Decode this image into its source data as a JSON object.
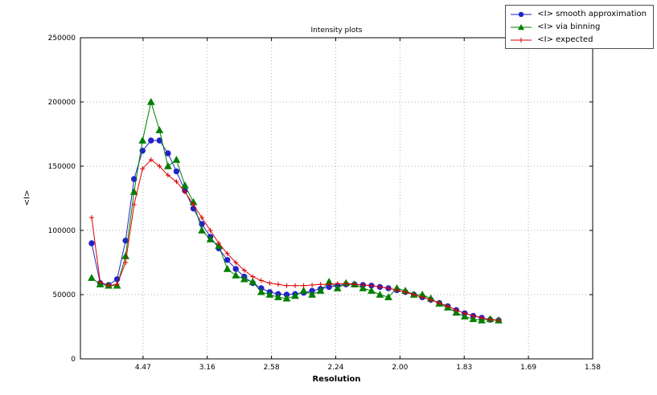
{
  "chart_data": {
    "type": "line",
    "title": "Intensity plots",
    "xlabel": "Resolution",
    "ylabel": "<I>",
    "grid": "dotted",
    "legend_position": "upper right, outside axes",
    "x_axis": {
      "note": "x variable is 1/d^2; tick labels show resolution d in Angstrom",
      "range": [
        0.00125,
        0.4
      ],
      "ticks": [
        {
          "label": "4.47",
          "value": 0.05
        },
        {
          "label": "3.16",
          "value": 0.1
        },
        {
          "label": "2.58",
          "value": 0.15
        },
        {
          "label": "2.24",
          "value": 0.2
        },
        {
          "label": "2.00",
          "value": 0.25
        },
        {
          "label": "1.83",
          "value": 0.3
        },
        {
          "label": "1.69",
          "value": 0.35
        },
        {
          "label": "1.58",
          "value": 0.4
        }
      ]
    },
    "y_axis": {
      "range": [
        0,
        250000
      ],
      "ticks": [
        {
          "label": "0",
          "value": 0
        },
        {
          "label": "50000",
          "value": 50000
        },
        {
          "label": "100000",
          "value": 100000
        },
        {
          "label": "150000",
          "value": 150000
        },
        {
          "label": "200000",
          "value": 200000
        },
        {
          "label": "250000",
          "value": 250000
        }
      ]
    },
    "x": [
      0.01,
      0.0166,
      0.0232,
      0.0298,
      0.0364,
      0.043,
      0.0496,
      0.0562,
      0.0628,
      0.0694,
      0.076,
      0.0826,
      0.0892,
      0.0958,
      0.1024,
      0.109,
      0.1156,
      0.1222,
      0.1288,
      0.1354,
      0.142,
      0.1486,
      0.1552,
      0.1618,
      0.1684,
      0.175,
      0.1816,
      0.1882,
      0.1948,
      0.2014,
      0.208,
      0.2146,
      0.2212,
      0.2278,
      0.2344,
      0.241,
      0.2476,
      0.2542,
      0.2608,
      0.2674,
      0.274,
      0.2806,
      0.2872,
      0.2938,
      0.3004,
      0.307,
      0.3136,
      0.3202,
      0.3268
    ],
    "series": [
      {
        "name": "<I> smooth approximation",
        "color": "#2222cc",
        "marker": "circle",
        "values": [
          90000,
          59000,
          57500,
          62000,
          92000,
          140000,
          162000,
          170000,
          170000,
          160000,
          146000,
          131000,
          117000,
          105000,
          95000,
          86000,
          77000,
          70000,
          64000,
          59000,
          55000,
          52000,
          50500,
          50000,
          50500,
          51500,
          53000,
          54500,
          56000,
          57000,
          58000,
          58000,
          57500,
          57000,
          56000,
          55000,
          53500,
          52000,
          50000,
          48000,
          46000,
          43500,
          41000,
          38000,
          35500,
          33500,
          32000,
          30500,
          30000
        ]
      },
      {
        "name": "<I> via binning",
        "color": "#007f00",
        "marker": "triangle",
        "values": [
          63000,
          58000,
          57000,
          57000,
          80000,
          130000,
          170000,
          200000,
          178000,
          150000,
          155000,
          135000,
          122000,
          100000,
          93000,
          88000,
          70000,
          65000,
          62000,
          60000,
          52000,
          50000,
          48000,
          47000,
          49000,
          53000,
          50000,
          53000,
          60000,
          55000,
          59000,
          58000,
          55000,
          53000,
          50000,
          48000,
          55000,
          53000,
          50000,
          50000,
          47000,
          43000,
          40000,
          36000,
          33000,
          31000,
          30000,
          31000,
          30000
        ]
      },
      {
        "name": "<I> expected",
        "color": "#dd0000",
        "marker": "plus",
        "values": [
          110000,
          60000,
          57000,
          58000,
          75000,
          120000,
          148000,
          155000,
          150000,
          143000,
          138000,
          130000,
          120000,
          110000,
          100000,
          90000,
          82000,
          75000,
          69000,
          64000,
          61000,
          59000,
          58000,
          57000,
          57000,
          57000,
          57500,
          58000,
          58000,
          58500,
          58500,
          58000,
          57500,
          57000,
          56000,
          55000,
          53500,
          52000,
          50000,
          48000,
          46000,
          43500,
          41000,
          38000,
          35500,
          33500,
          32000,
          30500,
          30000
        ]
      }
    ],
    "colors": {
      "grid": "#b0b0b0",
      "axis": "#000000",
      "background": "#ffffff"
    }
  }
}
